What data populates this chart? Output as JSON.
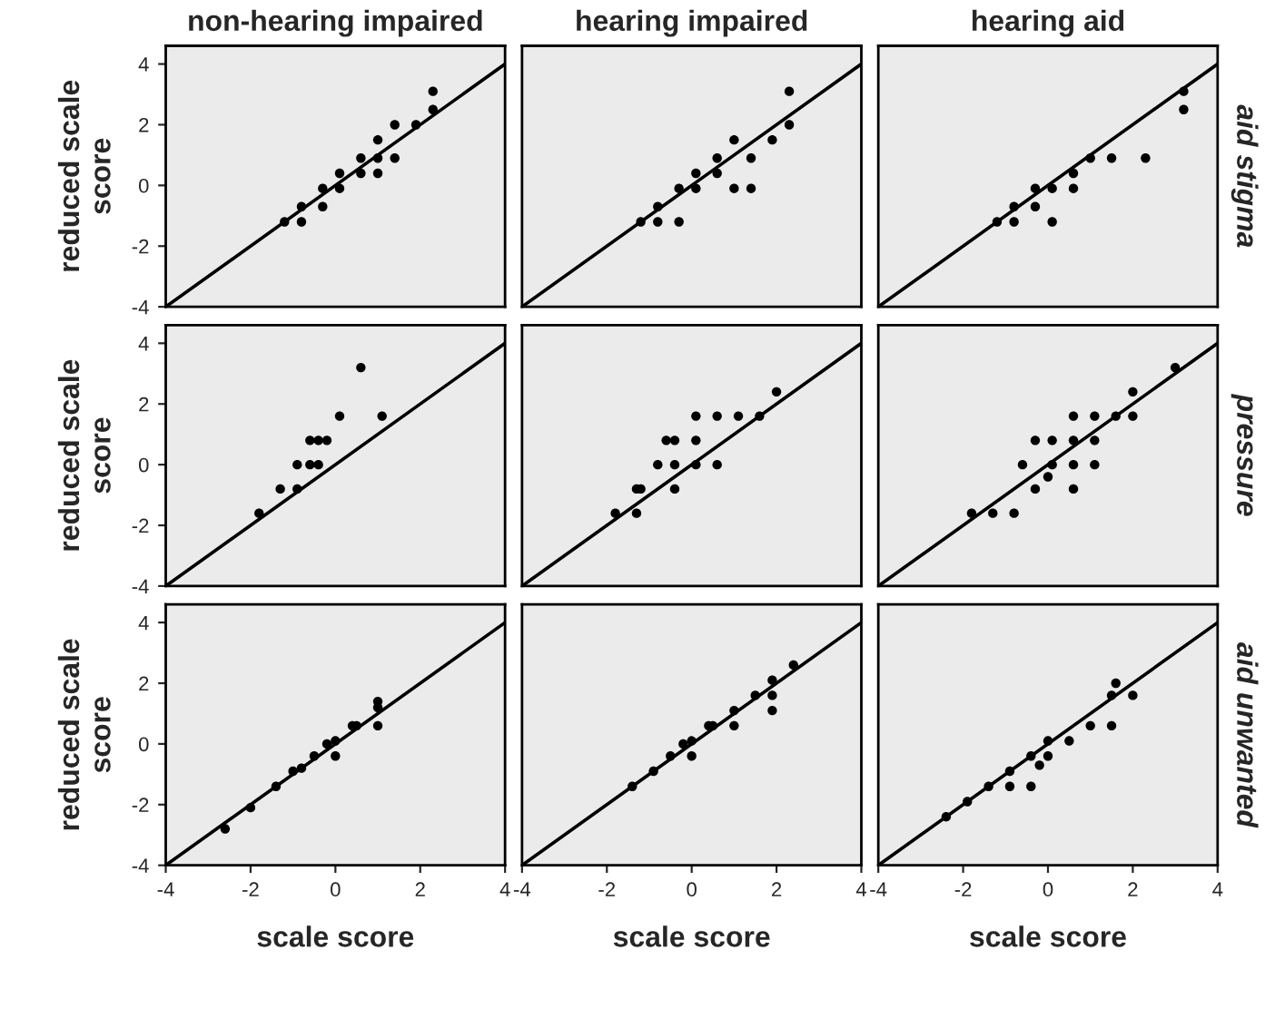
{
  "chart_data": [
    {
      "type": "scatter",
      "title": "non-hearing impaired",
      "ylabel": "reduced scale score",
      "xlim": [
        -4,
        4
      ],
      "ylim": [
        -4,
        4.6
      ],
      "xticks": [
        -4,
        -2,
        0,
        2,
        4
      ],
      "yticks": [
        -4,
        -2,
        0,
        2,
        4
      ],
      "tick_labels": "y",
      "grid": false,
      "series": [
        {
          "marker": "circle",
          "color": "#000000",
          "x": [
            -1.2,
            -0.8,
            -0.8,
            -0.3,
            -0.3,
            0.1,
            0.1,
            0.6,
            0.6,
            1.0,
            1.0,
            1.0,
            1.4,
            1.4,
            1.9,
            2.3,
            2.3
          ],
          "values": [
            -1.2,
            -1.2,
            -0.7,
            -0.7,
            -0.1,
            -0.1,
            0.4,
            0.4,
            0.9,
            0.4,
            0.9,
            1.5,
            0.9,
            2.0,
            2.0,
            2.5,
            3.1
          ]
        },
        {
          "type": "line",
          "color": "#000000",
          "x": [
            -4,
            4
          ],
          "values": [
            -4,
            4
          ]
        }
      ]
    },
    {
      "type": "scatter",
      "title": "hearing impaired",
      "xlim": [
        -4,
        4
      ],
      "ylim": [
        -4,
        4.6
      ],
      "xticks": [
        -4,
        -2,
        0,
        2,
        4
      ],
      "yticks": [
        -4,
        -2,
        0,
        2,
        4
      ],
      "tick_labels": false,
      "grid": false,
      "series": [
        {
          "marker": "circle",
          "color": "#000000",
          "x": [
            -1.2,
            -0.8,
            -0.3,
            -0.8,
            -0.3,
            0.1,
            0.1,
            0.6,
            0.6,
            1.0,
            1.4,
            1.0,
            1.4,
            1.9,
            2.3,
            2.3
          ],
          "values": [
            -1.2,
            -1.2,
            -1.2,
            -0.7,
            -0.1,
            -0.1,
            0.4,
            0.4,
            0.9,
            1.5,
            0.9,
            -0.1,
            -0.1,
            1.5,
            2.0,
            3.1
          ]
        },
        {
          "type": "line",
          "color": "#000000",
          "x": [
            -4,
            4
          ],
          "values": [
            -4,
            4
          ]
        }
      ]
    },
    {
      "type": "scatter",
      "title": "hearing aid",
      "y2label": "aid stigma",
      "xlim": [
        -4,
        4
      ],
      "ylim": [
        -4,
        4.6
      ],
      "xticks": [
        -4,
        -2,
        0,
        2,
        4
      ],
      "yticks": [
        -4,
        -2,
        0,
        2,
        4
      ],
      "tick_labels": false,
      "grid": false,
      "series": [
        {
          "marker": "circle",
          "color": "#000000",
          "x": [
            -1.2,
            -0.8,
            -0.8,
            -0.3,
            -0.3,
            0.1,
            0.1,
            0.6,
            0.6,
            1.0,
            1.5,
            2.3,
            3.2,
            3.2
          ],
          "values": [
            -1.2,
            -1.2,
            -0.7,
            -0.7,
            -0.1,
            -0.1,
            -1.2,
            -0.1,
            0.4,
            0.9,
            0.9,
            0.9,
            2.5,
            3.1
          ]
        },
        {
          "type": "line",
          "color": "#000000",
          "x": [
            -4,
            4
          ],
          "values": [
            -4,
            4
          ]
        }
      ]
    },
    {
      "type": "scatter",
      "ylabel": "reduced scale score",
      "xlim": [
        -4,
        4
      ],
      "ylim": [
        -4,
        4.6
      ],
      "xticks": [
        -4,
        -2,
        0,
        2,
        4
      ],
      "yticks": [
        -4,
        -2,
        0,
        2,
        4
      ],
      "tick_labels": "y",
      "grid": false,
      "series": [
        {
          "marker": "circle",
          "color": "#000000",
          "x": [
            -1.8,
            -1.3,
            -0.9,
            -0.9,
            -0.6,
            -0.4,
            -0.6,
            -0.4,
            -0.2,
            0.1,
            0.6,
            1.1
          ],
          "values": [
            -1.6,
            -0.8,
            -0.8,
            0.0,
            0.0,
            0.0,
            0.8,
            0.8,
            0.8,
            1.6,
            3.2,
            1.6
          ]
        },
        {
          "type": "line",
          "color": "#000000",
          "x": [
            -4,
            4
          ],
          "values": [
            -4,
            4
          ]
        }
      ]
    },
    {
      "type": "scatter",
      "xlim": [
        -4,
        4
      ],
      "ylim": [
        -4,
        4.6
      ],
      "xticks": [
        -4,
        -2,
        0,
        2,
        4
      ],
      "yticks": [
        -4,
        -2,
        0,
        2,
        4
      ],
      "tick_labels": false,
      "grid": false,
      "series": [
        {
          "marker": "circle",
          "color": "#000000",
          "x": [
            -1.8,
            -1.3,
            -1.3,
            -1.2,
            -0.8,
            -0.4,
            -0.4,
            -0.6,
            -0.4,
            0.1,
            0.1,
            0.6,
            0.1,
            0.6,
            1.1,
            1.6,
            2.0
          ],
          "values": [
            -1.6,
            -1.6,
            -0.8,
            -0.8,
            0.0,
            0.0,
            -0.8,
            0.8,
            0.8,
            0.8,
            0.0,
            0.0,
            1.6,
            1.6,
            1.6,
            1.6,
            2.4
          ]
        },
        {
          "type": "line",
          "color": "#000000",
          "x": [
            -4,
            4
          ],
          "values": [
            -4,
            4
          ]
        }
      ]
    },
    {
      "type": "scatter",
      "y2label": "pressure",
      "xlim": [
        -4,
        4
      ],
      "ylim": [
        -4,
        4.6
      ],
      "xticks": [
        -4,
        -2,
        0,
        2,
        4
      ],
      "yticks": [
        -4,
        -2,
        0,
        2,
        4
      ],
      "tick_labels": false,
      "grid": false,
      "series": [
        {
          "marker": "circle",
          "color": "#000000",
          "x": [
            -1.8,
            -1.3,
            -0.8,
            -0.6,
            -0.3,
            -0.3,
            0.0,
            0.1,
            0.1,
            0.6,
            0.6,
            0.6,
            0.6,
            1.1,
            1.1,
            1.1,
            1.6,
            2.0,
            2.0,
            3.0
          ],
          "values": [
            -1.6,
            -1.6,
            -1.6,
            0.0,
            -0.8,
            0.8,
            -0.4,
            0.0,
            0.8,
            -0.8,
            0.0,
            0.8,
            1.6,
            0.0,
            0.8,
            1.6,
            1.6,
            1.6,
            2.4,
            3.2
          ]
        },
        {
          "type": "line",
          "color": "#000000",
          "x": [
            -4,
            4
          ],
          "values": [
            -4,
            4
          ]
        }
      ]
    },
    {
      "type": "scatter",
      "xlabel": "scale score",
      "ylabel": "reduced scale score",
      "xlim": [
        -4,
        4
      ],
      "ylim": [
        -4,
        4.6
      ],
      "xticks": [
        -4,
        -2,
        0,
        2,
        4
      ],
      "yticks": [
        -4,
        -2,
        0,
        2,
        4
      ],
      "grid": false,
      "series": [
        {
          "marker": "circle",
          "color": "#000000",
          "x": [
            -2.6,
            -2.0,
            -1.4,
            -1.0,
            -0.8,
            -0.5,
            -0.2,
            0.0,
            0.0,
            0.4,
            0.5,
            1.0,
            1.0,
            1.0
          ],
          "values": [
            -2.8,
            -2.1,
            -1.4,
            -0.9,
            -0.8,
            -0.4,
            0.0,
            0.1,
            -0.4,
            0.6,
            0.6,
            1.4,
            1.2,
            0.6
          ]
        },
        {
          "type": "line",
          "color": "#000000",
          "x": [
            -4,
            4
          ],
          "values": [
            -4,
            4
          ]
        }
      ]
    },
    {
      "type": "scatter",
      "xlabel": "scale score",
      "xlim": [
        -4,
        4
      ],
      "ylim": [
        -4,
        4.6
      ],
      "xticks": [
        -4,
        -2,
        0,
        2,
        4
      ],
      "yticks": [
        -4,
        -2,
        0,
        2,
        4
      ],
      "tick_labels": "x",
      "grid": false,
      "series": [
        {
          "marker": "circle",
          "color": "#000000",
          "x": [
            -1.4,
            -0.9,
            -0.5,
            -0.2,
            0.0,
            0.0,
            0.4,
            0.5,
            1.0,
            1.0,
            1.5,
            1.9,
            1.9,
            1.9,
            2.4
          ],
          "values": [
            -1.4,
            -0.9,
            -0.4,
            0.0,
            0.1,
            -0.4,
            0.6,
            0.6,
            1.1,
            0.6,
            1.6,
            2.1,
            1.6,
            1.1,
            2.6
          ]
        },
        {
          "type": "line",
          "color": "#000000",
          "x": [
            -4,
            4
          ],
          "values": [
            -4,
            4
          ]
        }
      ]
    },
    {
      "type": "scatter",
      "xlabel": "scale score",
      "y2label": "aid unwanted",
      "xlim": [
        -4,
        4
      ],
      "ylim": [
        -4,
        4.6
      ],
      "xticks": [
        -4,
        -2,
        0,
        2,
        4
      ],
      "yticks": [
        -4,
        -2,
        0,
        2,
        4
      ],
      "tick_labels": "x",
      "grid": false,
      "series": [
        {
          "marker": "circle",
          "color": "#000000",
          "x": [
            -2.4,
            -1.9,
            -1.4,
            -0.9,
            -0.9,
            -0.4,
            -0.4,
            -0.2,
            0.0,
            0.0,
            0.5,
            1.0,
            1.5,
            1.5,
            1.6,
            2.0
          ],
          "values": [
            -2.4,
            -1.9,
            -1.4,
            -0.9,
            -1.4,
            -0.4,
            -1.4,
            -0.7,
            -0.4,
            0.1,
            0.1,
            0.6,
            0.6,
            1.6,
            2.0,
            1.6
          ]
        },
        {
          "type": "line",
          "color": "#000000",
          "x": [
            -4,
            4
          ],
          "values": [
            -4,
            4
          ]
        }
      ]
    }
  ]
}
